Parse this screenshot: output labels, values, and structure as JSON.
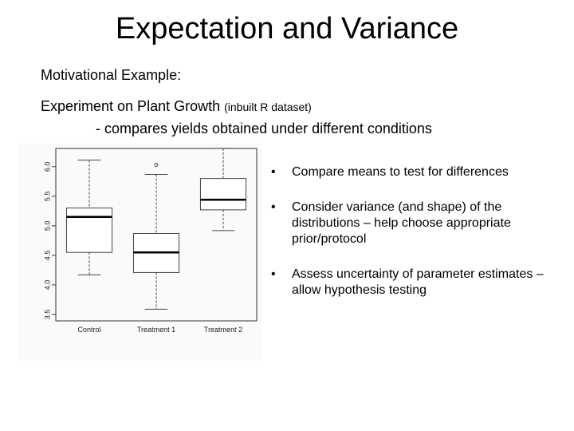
{
  "slide": {
    "title": "Expectation and Variance",
    "motivation": "Motivational Example:",
    "experiment_main": "Experiment on Plant Growth",
    "experiment_note": "(inbuilt R dataset)",
    "compares": "- compares yields obtained under different conditions"
  },
  "bullets": [
    {
      "marker": "•",
      "text": "Compare means to test for differences"
    },
    {
      "marker": "•",
      "text": "Consider variance (and shape) of the distributions – help choose appropriate prior/protocol"
    },
    {
      "marker": "•",
      "text": "Assess uncertainty of parameter estimates – allow hypothesis testing"
    }
  ],
  "chart_data": {
    "type": "boxplot",
    "categories": [
      "Control",
      "Treatment 1",
      "Treatment 2"
    ],
    "ylim": [
      3.5,
      6.2
    ],
    "yticks": [
      "3.5",
      "4.0",
      "4.5",
      "5.0",
      "5.5",
      "6.0"
    ],
    "boxes": [
      {
        "min": 4.17,
        "q1": 4.55,
        "median": 5.15,
        "q3": 5.3,
        "max": 6.11,
        "outliers": []
      },
      {
        "min": 3.59,
        "q1": 4.21,
        "median": 4.55,
        "q3": 4.87,
        "max": 5.87,
        "outliers": [
          6.03
        ]
      },
      {
        "min": 4.92,
        "q1": 5.27,
        "median": 5.44,
        "q3": 5.8,
        "max": 6.31,
        "outliers": []
      }
    ]
  }
}
